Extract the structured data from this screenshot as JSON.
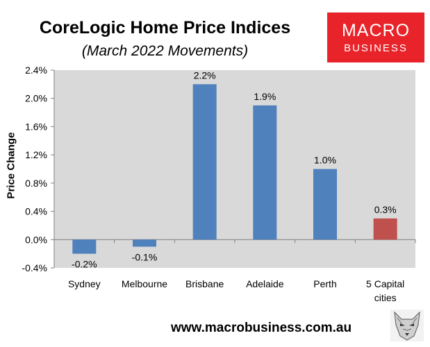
{
  "title": "CoreLogic Home Price Indices",
  "subtitle": "(March 2022 Movements)",
  "logo": {
    "line1": "MACRO",
    "line2": "BUSINESS",
    "color": "#e8232a",
    "icon": "wolf-logo-icon"
  },
  "footer_url": "www.macrobusiness.com.au",
  "chart_data": {
    "type": "bar",
    "categories": [
      "Sydney",
      "Melbourne",
      "Brisbane",
      "Adelaide",
      "Perth",
      "5 Capital cities"
    ],
    "values": [
      -0.2,
      -0.1,
      2.2,
      1.9,
      1.0,
      0.3
    ],
    "data_labels": [
      "-0.2%",
      "-0.1%",
      "2.2%",
      "1.9%",
      "1.0%",
      "0.3%"
    ],
    "bar_colors": [
      "#4f81bd",
      "#4f81bd",
      "#4f81bd",
      "#4f81bd",
      "#4f81bd",
      "#c0504d"
    ],
    "ylabel": "Price Change",
    "ylim": [
      -0.4,
      2.4
    ],
    "yticks": [
      -0.4,
      0.0,
      0.4,
      0.8,
      1.2,
      1.6,
      2.0,
      2.4
    ],
    "ytick_labels": [
      "-0.4%",
      "0.0%",
      "0.4%",
      "0.8%",
      "1.2%",
      "1.6%",
      "2.0%",
      "2.4%"
    ],
    "plot_background": "#d9d9d9",
    "grid": false,
    "legend": "none"
  }
}
